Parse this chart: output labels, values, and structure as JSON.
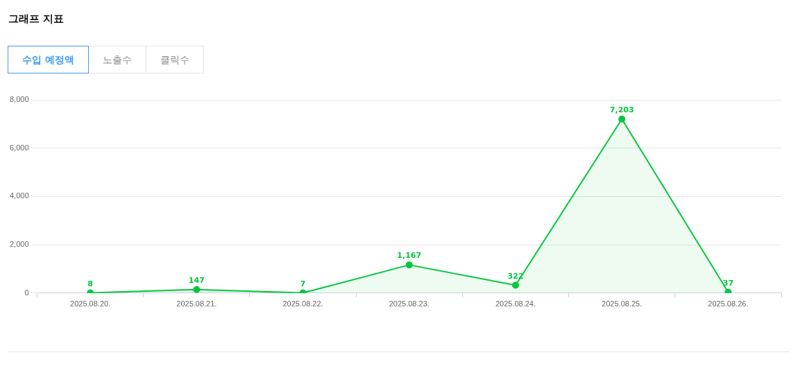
{
  "chart_data": {
    "type": "area",
    "title": "그래프 지표",
    "annotations": [
      "수입 예정액",
      "노출수",
      "클릭수"
    ],
    "categories": [
      "2025.08.20.",
      "2025.08.21.",
      "2025.08.22.",
      "2025.08.23.",
      "2025.08.24.",
      "2025.08.25.",
      "2025.08.26."
    ],
    "series": [
      {
        "color": "#00c73c",
        "values": [
          8,
          147,
          7,
          1167,
          322,
          7203,
          37
        ],
        "value_labels": [
          "8",
          "147",
          "7",
          "1,167",
          "322",
          "7,203",
          "37"
        ]
      }
    ],
    "ylim": [
      0,
      8000
    ],
    "yticks": [
      0,
      {
        "value": 2000,
        "label": "2,000"
      },
      {
        "value": 4000,
        "label": "4,000"
      },
      {
        "value": 6000,
        "label": "6,000"
      },
      {
        "value": 8000,
        "label": "8,000"
      }
    ],
    "grid": "y",
    "legend": false,
    "marker": "circle",
    "line_style": "solid"
  }
}
